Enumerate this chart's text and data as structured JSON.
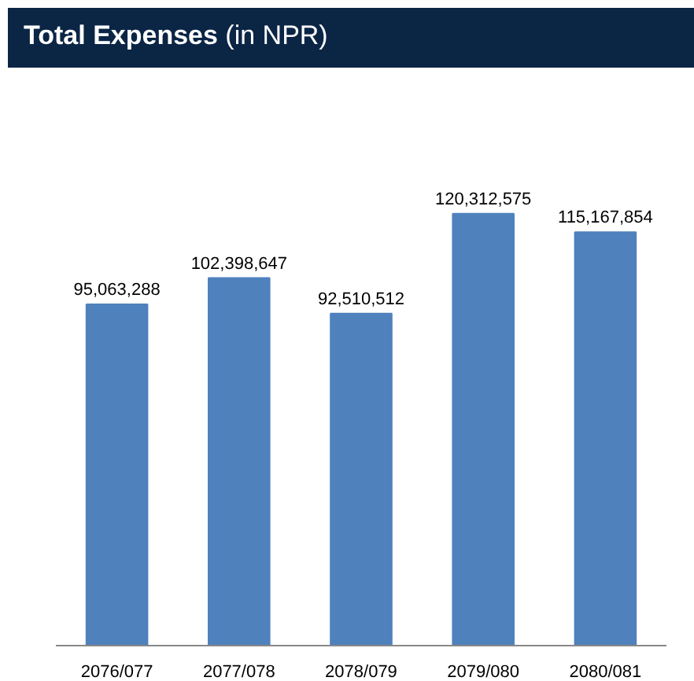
{
  "chart_data": {
    "type": "bar",
    "title": "Total Expenses",
    "subtitle": "(in NPR)",
    "categories": [
      "2076/077",
      "2077/078",
      "2078/079",
      "2079/080",
      "2080/081"
    ],
    "values": [
      95063288,
      102398647,
      92510512,
      120312575,
      115167854
    ],
    "value_labels": [
      "95,063,288",
      "102,398,647",
      "92,510,512",
      "120,312,575",
      "115,167,854"
    ],
    "color": "#4f81bd"
  }
}
